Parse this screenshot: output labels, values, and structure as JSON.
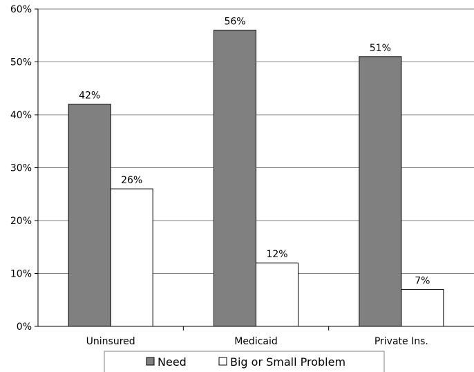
{
  "chart_data": {
    "type": "bar",
    "categories": [
      "Uninsured",
      "Medicaid",
      "Private Ins."
    ],
    "series": [
      {
        "name": "Need",
        "values": [
          42,
          56,
          51
        ],
        "color": "#808080"
      },
      {
        "name": "Big or Small Problem",
        "values": [
          26,
          12,
          7
        ],
        "color": "#ffffff"
      }
    ],
    "value_suffix": "%",
    "ylim": [
      0,
      60
    ],
    "yticks": [
      0,
      10,
      20,
      30,
      40,
      50,
      60
    ],
    "ytick_labels": [
      "0%",
      "10%",
      "20%",
      "30%",
      "40%",
      "50%",
      "60%"
    ],
    "grid": true,
    "legend_position": "bottom"
  }
}
